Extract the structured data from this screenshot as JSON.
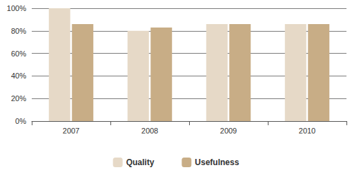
{
  "chart_data": {
    "type": "bar",
    "categories": [
      "2007",
      "2008",
      "2009",
      "2010"
    ],
    "series": [
      {
        "name": "Quality",
        "color": "#e6d9c7",
        "values": [
          100,
          80,
          86,
          86
        ]
      },
      {
        "name": "Usefulness",
        "color": "#c8ad86",
        "values": [
          86,
          83,
          86,
          86
        ]
      }
    ],
    "ylim": [
      0,
      100
    ],
    "yticks": [
      {
        "value": 0,
        "label": "0%"
      },
      {
        "value": 20,
        "label": "20%"
      },
      {
        "value": 40,
        "label": "40%"
      },
      {
        "value": 60,
        "label": "60%"
      },
      {
        "value": 80,
        "label": "80%"
      },
      {
        "value": 100,
        "label": "100%"
      }
    ],
    "grid": true,
    "legend": "bottom"
  }
}
